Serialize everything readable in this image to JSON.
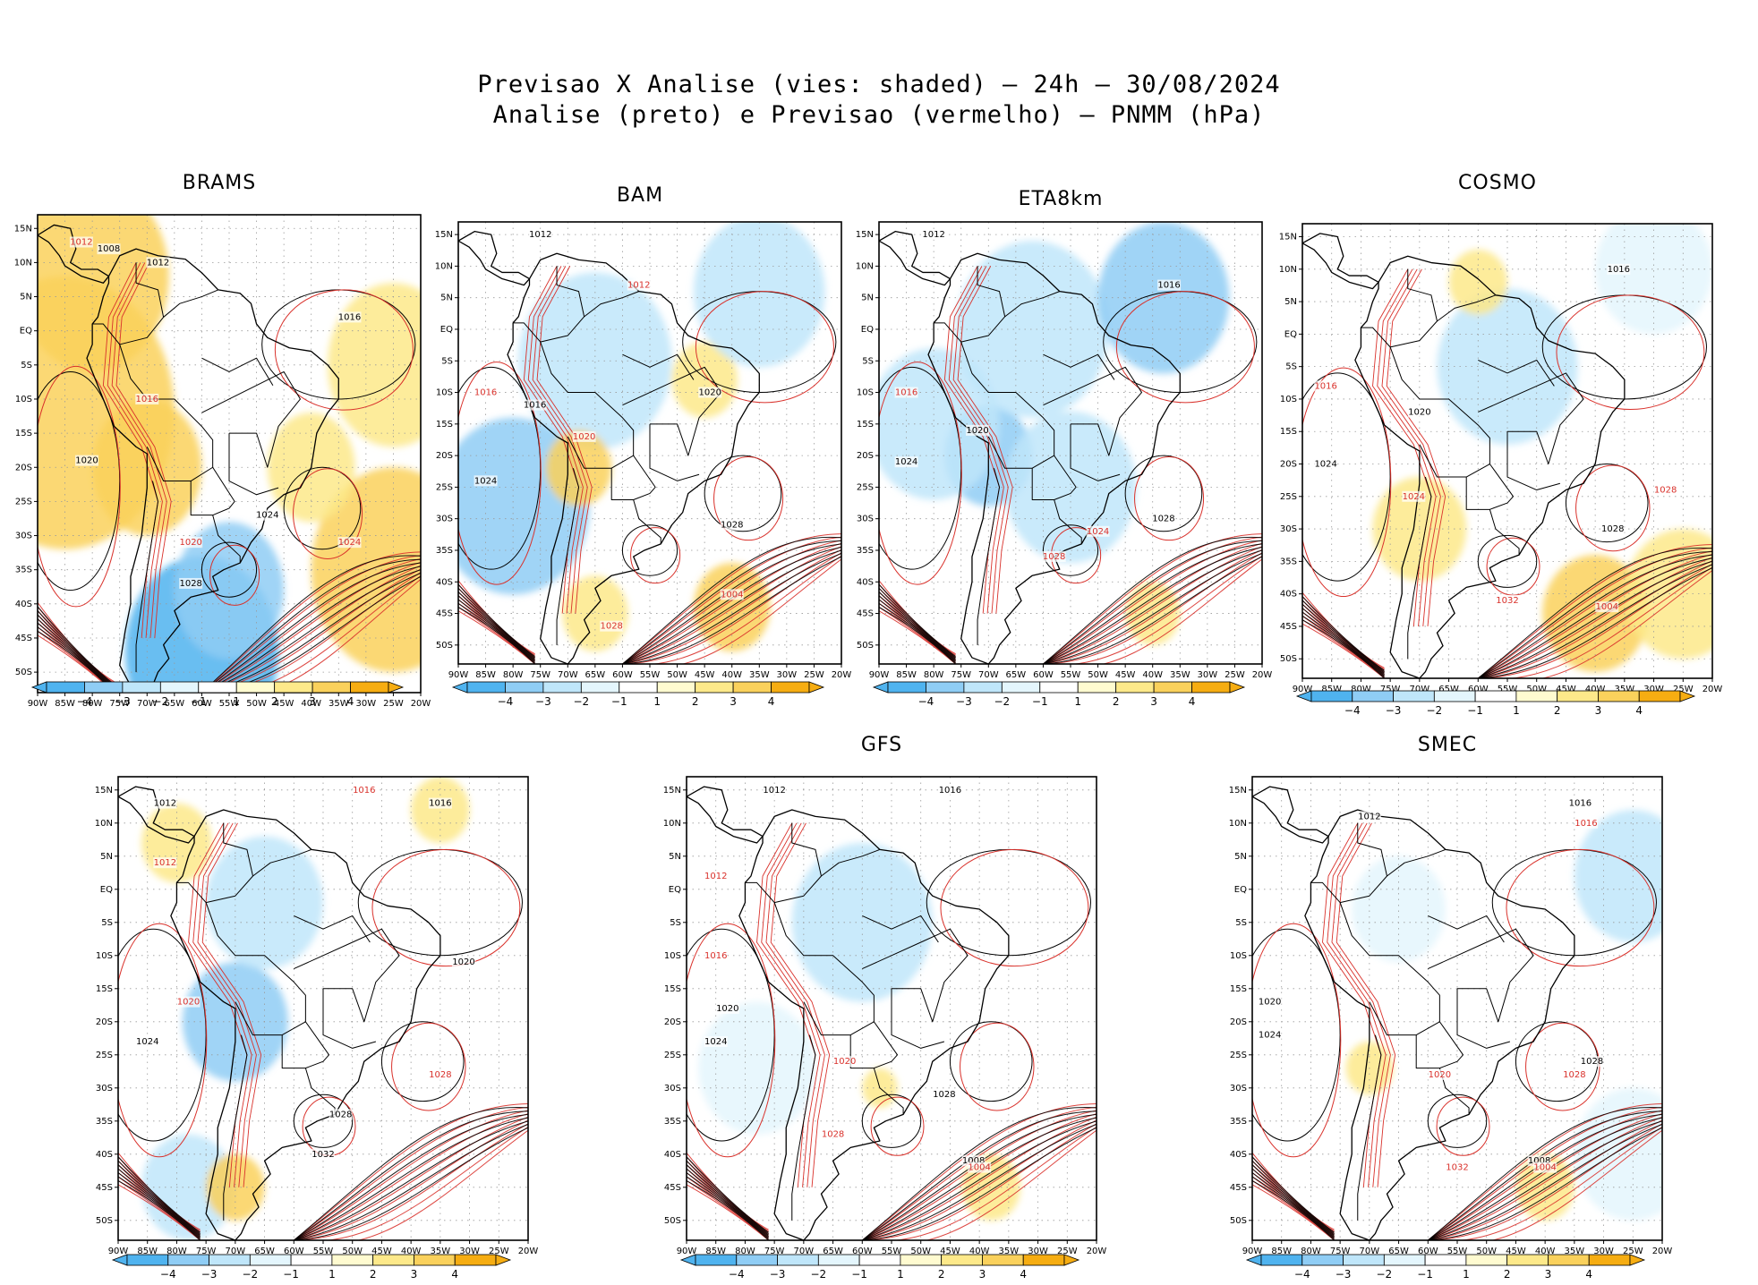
{
  "title": {
    "line1": "Previsao X Analise (vies: shaded) — 24h — 30/08/2024",
    "line2": "Analise (preto) e Previsao (vermelho) — PNMM (hPa)"
  },
  "colors": {
    "neg4": "#4fb3ef",
    "neg3": "#8fcdf5",
    "neg2": "#bfe6fa",
    "neg1": "#e4f6fd",
    "pos1": "#fffbd0",
    "pos2": "#fde98a",
    "pos3": "#fad15c",
    "pos4": "#f6ad12",
    "analysis": "#000000",
    "forecast": "#d9312b",
    "coast": "#000000",
    "grid": "#9a9a9a"
  },
  "axes": {
    "lat_labels": [
      "15N",
      "10N",
      "5N",
      "EQ",
      "5S",
      "10S",
      "15S",
      "20S",
      "25S",
      "30S",
      "35S",
      "40S",
      "45S",
      "50S"
    ],
    "lon_labels": [
      "90W",
      "85W",
      "80W",
      "75W",
      "70W",
      "65W",
      "60W",
      "55W",
      "50W",
      "45W",
      "40W",
      "35W",
      "30W",
      "25W",
      "20W"
    ]
  },
  "colorbar": {
    "labels": [
      "−4",
      "−3",
      "−2",
      "−1",
      "1",
      "2",
      "3",
      "4"
    ]
  },
  "panels": [
    {
      "name": "BRAMS",
      "bias": [
        {
          "lon": -85,
          "lat": -12,
          "v": 3.2,
          "r": 20
        },
        {
          "lon": -80,
          "lat": 8,
          "v": 2.6,
          "r": 14
        },
        {
          "lon": -70,
          "lat": -20,
          "v": 3,
          "r": 10
        },
        {
          "lon": -60,
          "lat": -47,
          "v": -3.6,
          "r": 14
        },
        {
          "lon": -55,
          "lat": -38,
          "v": -2.8,
          "r": 10
        },
        {
          "lon": -25,
          "lat": -35,
          "v": 3.2,
          "r": 15
        },
        {
          "lon": -25,
          "lat": -5,
          "v": 2.2,
          "r": 12
        },
        {
          "lon": -40,
          "lat": -20,
          "v": 1.8,
          "r": 8
        }
      ],
      "labels_black": [
        {
          "t": "1008",
          "lon": -77,
          "lat": 12
        },
        {
          "t": "1012",
          "lon": -68,
          "lat": 10
        },
        {
          "t": "1016",
          "lon": -33,
          "lat": 2
        },
        {
          "t": "1020",
          "lon": -81,
          "lat": -19
        },
        {
          "t": "1024",
          "lon": -48,
          "lat": -27
        },
        {
          "t": "1028",
          "lon": -62,
          "lat": -37
        }
      ],
      "labels_red": [
        {
          "t": "1012",
          "lon": -82,
          "lat": 13
        },
        {
          "t": "1016",
          "lon": -70,
          "lat": -10
        },
        {
          "t": "1020",
          "lon": -62,
          "lat": -31
        },
        {
          "t": "1024",
          "lon": -33,
          "lat": -31
        }
      ]
    },
    {
      "name": "BAM",
      "bias": [
        {
          "lon": -65,
          "lat": -5,
          "v": -2.4,
          "r": 14
        },
        {
          "lon": -80,
          "lat": -28,
          "v": -2.6,
          "r": 14
        },
        {
          "lon": -68,
          "lat": -22,
          "v": 3.2,
          "r": 6
        },
        {
          "lon": -45,
          "lat": -8,
          "v": 2.2,
          "r": 6
        },
        {
          "lon": -40,
          "lat": -44,
          "v": 2.6,
          "r": 7
        },
        {
          "lon": -65,
          "lat": -45,
          "v": 2.2,
          "r": 6
        },
        {
          "lon": -35,
          "lat": 6,
          "v": -1.5,
          "r": 12
        }
      ],
      "labels_black": [
        {
          "t": "1012",
          "lon": -75,
          "lat": 15
        },
        {
          "t": "1016",
          "lon": -76,
          "lat": -12
        },
        {
          "t": "1020",
          "lon": -44,
          "lat": -10
        },
        {
          "t": "1024",
          "lon": -85,
          "lat": -24
        },
        {
          "t": "1028",
          "lon": -40,
          "lat": -31
        }
      ],
      "labels_red": [
        {
          "t": "1012",
          "lon": -57,
          "lat": 7
        },
        {
          "t": "1016",
          "lon": -85,
          "lat": -10
        },
        {
          "t": "1020",
          "lon": -67,
          "lat": -17
        },
        {
          "t": "1028",
          "lon": -62,
          "lat": -47
        },
        {
          "t": "1004",
          "lon": -40,
          "lat": -42
        }
      ]
    },
    {
      "name": "ETA8km",
      "bias": [
        {
          "lon": -70,
          "lat": -20,
          "v": -3.2,
          "r": 8
        },
        {
          "lon": -62,
          "lat": 0,
          "v": -2.2,
          "r": 14
        },
        {
          "lon": -38,
          "lat": 5,
          "v": -2.8,
          "r": 12
        },
        {
          "lon": -55,
          "lat": -25,
          "v": -1.8,
          "r": 12
        },
        {
          "lon": -80,
          "lat": -15,
          "v": -1.5,
          "r": 12
        },
        {
          "lon": -40,
          "lat": -45,
          "v": 2.2,
          "r": 5
        }
      ],
      "labels_black": [
        {
          "t": "1012",
          "lon": -80,
          "lat": 15
        },
        {
          "t": "1016",
          "lon": -37,
          "lat": 7
        },
        {
          "t": "1020",
          "lon": -72,
          "lat": -16
        },
        {
          "t": "1024",
          "lon": -85,
          "lat": -21
        },
        {
          "t": "1028",
          "lon": -38,
          "lat": -30
        }
      ],
      "labels_red": [
        {
          "t": "1016",
          "lon": -85,
          "lat": -10
        },
        {
          "t": "1024",
          "lon": -50,
          "lat": -32
        },
        {
          "t": "1028",
          "lon": -58,
          "lat": -36
        }
      ]
    },
    {
      "name": "COSMO",
      "bias": [
        {
          "lon": -70,
          "lat": -30,
          "v": 2.4,
          "r": 8
        },
        {
          "lon": -40,
          "lat": -43,
          "v": 3.2,
          "r": 9
        },
        {
          "lon": -55,
          "lat": -5,
          "v": -1.6,
          "r": 12
        },
        {
          "lon": -30,
          "lat": 10,
          "v": -1.4,
          "r": 10
        },
        {
          "lon": -60,
          "lat": 8,
          "v": 2.2,
          "r": 5
        },
        {
          "lon": -25,
          "lat": -40,
          "v": 2.4,
          "r": 10
        }
      ],
      "labels_black": [
        {
          "t": "1016",
          "lon": -36,
          "lat": 10
        },
        {
          "t": "1020",
          "lon": -70,
          "lat": -12
        },
        {
          "t": "1024",
          "lon": -86,
          "lat": -20
        },
        {
          "t": "1028",
          "lon": -37,
          "lat": -30
        }
      ],
      "labels_red": [
        {
          "t": "1016",
          "lon": -86,
          "lat": -8
        },
        {
          "t": "1024",
          "lon": -71,
          "lat": -25
        },
        {
          "t": "1028",
          "lon": -28,
          "lat": -24
        },
        {
          "t": "1032",
          "lon": -55,
          "lat": -41
        },
        {
          "t": "1004",
          "lon": -38,
          "lat": -42
        }
      ]
    },
    {
      "name": "",
      "bias": [
        {
          "lon": -70,
          "lat": -20,
          "v": -2.6,
          "r": 9
        },
        {
          "lon": -65,
          "lat": -2,
          "v": -1.8,
          "r": 10
        },
        {
          "lon": -80,
          "lat": 7,
          "v": 2.2,
          "r": 6
        },
        {
          "lon": -35,
          "lat": 12,
          "v": 1.8,
          "r": 5
        },
        {
          "lon": -78,
          "lat": -45,
          "v": -2.4,
          "r": 8
        },
        {
          "lon": -70,
          "lat": -45,
          "v": 2.6,
          "r": 5
        }
      ],
      "labels_black": [
        {
          "t": "1012",
          "lon": -82,
          "lat": 13
        },
        {
          "t": "1016",
          "lon": -35,
          "lat": 13
        },
        {
          "t": "1020",
          "lon": -31,
          "lat": -11
        },
        {
          "t": "1024",
          "lon": -85,
          "lat": -23
        },
        {
          "t": "1028",
          "lon": -52,
          "lat": -34
        },
        {
          "t": "1032",
          "lon": -55,
          "lat": -40
        }
      ],
      "labels_red": [
        {
          "t": "1016",
          "lon": -48,
          "lat": 15
        },
        {
          "t": "1012",
          "lon": -82,
          "lat": 4
        },
        {
          "t": "1020",
          "lon": -78,
          "lat": -17
        },
        {
          "t": "1028",
          "lon": -35,
          "lat": -28
        }
      ]
    },
    {
      "name": "GFS",
      "bias": [
        {
          "lon": -60,
          "lat": -5,
          "v": -1.8,
          "r": 12
        },
        {
          "lon": -78,
          "lat": -27,
          "v": -1.4,
          "r": 10
        },
        {
          "lon": -38,
          "lat": -45,
          "v": 2.2,
          "r": 5
        },
        {
          "lon": -57,
          "lat": -30,
          "v": 2.4,
          "r": 3
        }
      ],
      "labels_black": [
        {
          "t": "1012",
          "lon": -75,
          "lat": 15
        },
        {
          "t": "1016",
          "lon": -45,
          "lat": 15
        },
        {
          "t": "1020",
          "lon": -83,
          "lat": -18
        },
        {
          "t": "1024",
          "lon": -85,
          "lat": -23
        },
        {
          "t": "1028",
          "lon": -46,
          "lat": -31
        },
        {
          "t": "1008",
          "lon": -41,
          "lat": -41
        }
      ],
      "labels_red": [
        {
          "t": "1012",
          "lon": -85,
          "lat": 2
        },
        {
          "t": "1016",
          "lon": -85,
          "lat": -10
        },
        {
          "t": "1020",
          "lon": -63,
          "lat": -26
        },
        {
          "t": "1028",
          "lon": -65,
          "lat": -37
        },
        {
          "t": "1004",
          "lon": -40,
          "lat": -42
        }
      ]
    },
    {
      "name": "SMEC",
      "bias": [
        {
          "lon": -70,
          "lat": -27,
          "v": 2.2,
          "r": 4
        },
        {
          "lon": -25,
          "lat": 2,
          "v": -1.6,
          "r": 10
        },
        {
          "lon": -40,
          "lat": -45,
          "v": 2.4,
          "r": 5
        },
        {
          "lon": -25,
          "lat": -40,
          "v": -1.4,
          "r": 10
        },
        {
          "lon": -65,
          "lat": -3,
          "v": -1.3,
          "r": 8
        }
      ],
      "labels_black": [
        {
          "t": "1012",
          "lon": -70,
          "lat": 11
        },
        {
          "t": "1016",
          "lon": -34,
          "lat": 13
        },
        {
          "t": "1020",
          "lon": -87,
          "lat": -17
        },
        {
          "t": "1024",
          "lon": -87,
          "lat": -22
        },
        {
          "t": "1028",
          "lon": -32,
          "lat": -26
        },
        {
          "t": "1008",
          "lon": -41,
          "lat": -41
        }
      ],
      "labels_red": [
        {
          "t": "1016",
          "lon": -33,
          "lat": 10
        },
        {
          "t": "1020",
          "lon": -58,
          "lat": -28
        },
        {
          "t": "1032",
          "lon": -55,
          "lat": -42
        },
        {
          "t": "1028",
          "lon": -35,
          "lat": -28
        },
        {
          "t": "1004",
          "lon": -40,
          "lat": -42
        }
      ]
    }
  ]
}
